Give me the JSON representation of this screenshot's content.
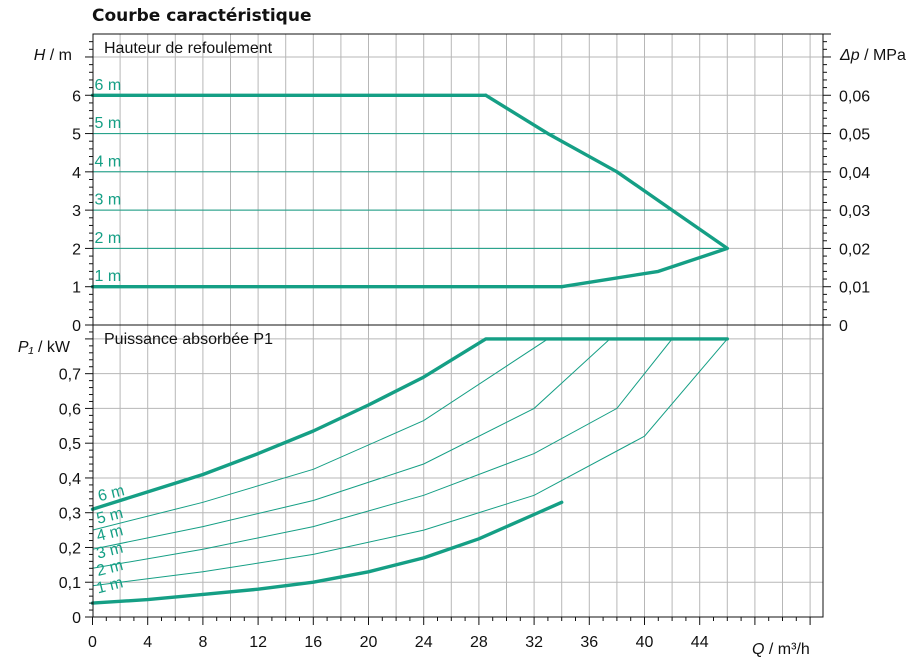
{
  "title": "Courbe caractéristique",
  "colors": {
    "curve": "#159f85",
    "grid": "#b7b7b7",
    "axis": "#111111"
  },
  "chart_data": [
    {
      "type": "line",
      "panel_title": "Hauteur de refoulement",
      "ylabel": "H / m",
      "ylabel_var": "H",
      "ylabel_unit": " / m",
      "y2label": "Δp / MPa",
      "y2label_var": "Δp",
      "y2label_unit": " / MPa",
      "xlim": [
        0,
        53
      ],
      "ylim": [
        0,
        7.6
      ],
      "yticks": [
        0,
        1,
        2,
        3,
        4,
        5,
        6
      ],
      "ytick_labels": [
        "0",
        "1",
        "2",
        "3",
        "4",
        "5",
        "6"
      ],
      "y2ticks": [
        0,
        1,
        2,
        3,
        4,
        5,
        6
      ],
      "y2tick_labels": [
        "0",
        "0,01",
        "0,02",
        "0,03",
        "0,04",
        "0,05",
        "0,06"
      ],
      "grid": true,
      "series": [
        {
          "name": "6 m",
          "label_y": 6.3,
          "weight": "thick",
          "x": [
            0,
            28.5
          ],
          "y": [
            6,
            6
          ]
        },
        {
          "name": "5 m",
          "label_y": 5.3,
          "weight": "thin",
          "x": [
            0,
            33.5
          ],
          "y": [
            5,
            5
          ]
        },
        {
          "name": "4 m",
          "label_y": 4.3,
          "weight": "thin",
          "x": [
            0,
            37.5
          ],
          "y": [
            4,
            4
          ]
        },
        {
          "name": "3 m",
          "label_y": 3.3,
          "weight": "thin",
          "x": [
            0,
            42
          ],
          "y": [
            3,
            3
          ]
        },
        {
          "name": "2 m",
          "label_y": 2.3,
          "weight": "thin",
          "x": [
            0,
            46
          ],
          "y": [
            2,
            2
          ]
        },
        {
          "name": "1 m",
          "label_y": 1.3,
          "weight": "thick",
          "x": [
            0,
            34
          ],
          "y": [
            1,
            1
          ]
        },
        {
          "name": "",
          "weight": "thick",
          "x": [
            28.5,
            33,
            38,
            42,
            46,
            41,
            34
          ],
          "y": [
            6,
            5,
            4,
            3,
            2,
            1.4,
            1
          ]
        }
      ]
    },
    {
      "type": "line",
      "panel_title": "Puissance absorbée P1",
      "ylabel": "P₁ / kW",
      "ylabel_var": "P₁",
      "ylabel_unit": " / kW",
      "xlabel": "Q / m³/h",
      "xlabel_var": "Q",
      "xlabel_unit": " / m³/h",
      "xlim": [
        0,
        53
      ],
      "ylim": [
        0,
        0.84
      ],
      "xticks": [
        0,
        4,
        8,
        12,
        16,
        20,
        24,
        28,
        32,
        36,
        40,
        44
      ],
      "xtick_labels": [
        "0",
        "4",
        "8",
        "12",
        "16",
        "20",
        "24",
        "28",
        "32",
        "36",
        "40",
        "44"
      ],
      "yticks": [
        0,
        0.1,
        0.2,
        0.3,
        0.4,
        0.5,
        0.6,
        0.7
      ],
      "ytick_labels": [
        "0",
        "0,1",
        "0,2",
        "0,3",
        "0,4",
        "0,5",
        "0,6",
        "0,7"
      ],
      "grid": true,
      "series": [
        {
          "name": "6 m",
          "label_x": 0.5,
          "label_y": 0.35,
          "weight": "thick",
          "x": [
            0,
            4,
            8,
            12,
            16,
            20,
            24,
            28.5,
            46
          ],
          "y": [
            0.31,
            0.36,
            0.41,
            0.47,
            0.535,
            0.61,
            0.69,
            0.8,
            0.8
          ]
        },
        {
          "name": "5 m",
          "label_x": 0.4,
          "label_y": 0.285,
          "weight": "thin",
          "x": [
            0,
            8,
            16,
            24,
            33,
            46
          ],
          "y": [
            0.25,
            0.33,
            0.425,
            0.565,
            0.8,
            0.8
          ]
        },
        {
          "name": "4 m",
          "label_x": 0.4,
          "label_y": 0.235,
          "weight": "thin",
          "x": [
            0,
            8,
            16,
            24,
            32,
            37.5,
            46
          ],
          "y": [
            0.195,
            0.26,
            0.335,
            0.44,
            0.6,
            0.8,
            0.8
          ]
        },
        {
          "name": "3 m",
          "label_x": 0.4,
          "label_y": 0.185,
          "weight": "thin",
          "x": [
            0,
            8,
            16,
            24,
            32,
            38,
            42,
            46
          ],
          "y": [
            0.14,
            0.195,
            0.26,
            0.35,
            0.47,
            0.6,
            0.8,
            0.8
          ]
        },
        {
          "name": "2 m",
          "label_x": 0.4,
          "label_y": 0.135,
          "weight": "thin",
          "x": [
            0,
            8,
            16,
            24,
            32,
            40,
            46
          ],
          "y": [
            0.09,
            0.13,
            0.18,
            0.25,
            0.35,
            0.52,
            0.8
          ]
        },
        {
          "name": "1 m",
          "label_x": 0.4,
          "label_y": 0.085,
          "weight": "thick",
          "x": [
            0,
            4,
            8,
            12,
            16,
            20,
            24,
            28,
            32,
            34
          ],
          "y": [
            0.04,
            0.05,
            0.065,
            0.08,
            0.1,
            0.13,
            0.17,
            0.225,
            0.295,
            0.33
          ]
        }
      ]
    }
  ]
}
